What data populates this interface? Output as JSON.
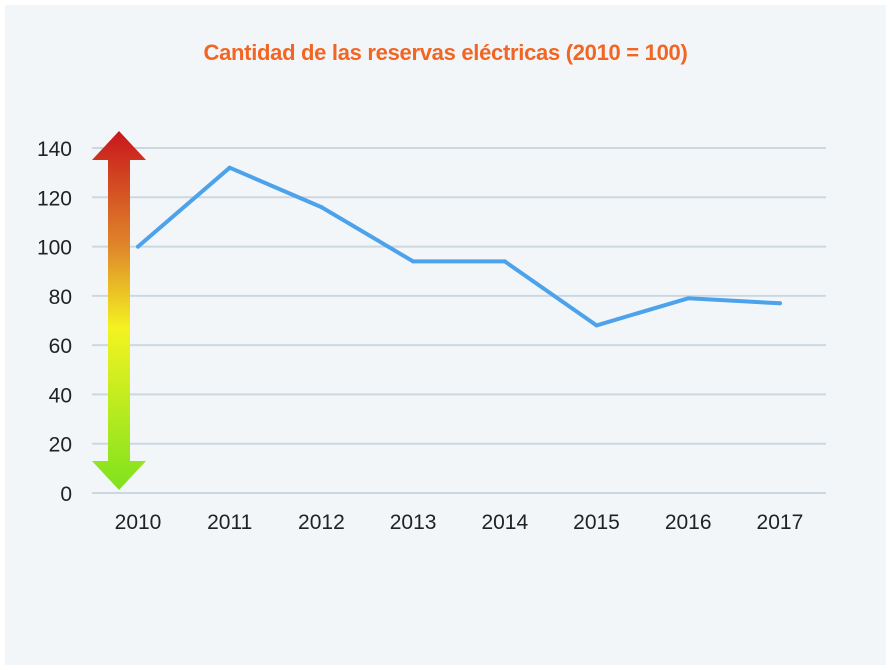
{
  "chart_data": {
    "type": "line",
    "title": "Cantidad de las reservas eléctricas (2010 = 100)",
    "xlabel": "",
    "ylabel": "",
    "categories": [
      "2010",
      "2011",
      "2012",
      "2013",
      "2014",
      "2015",
      "2016",
      "2017"
    ],
    "series": [
      {
        "values": [
          100,
          132,
          116,
          94,
          94,
          68,
          79,
          77
        ],
        "color": "#4da2ec"
      }
    ],
    "ylim": [
      0,
      140
    ],
    "yticks": [
      0,
      20,
      40,
      60,
      80,
      100,
      120,
      140
    ],
    "grid": true,
    "legend": "none",
    "arrow_gradient": [
      "#c9161c",
      "#e08a2a",
      "#f4f321",
      "#7fe21e"
    ]
  }
}
